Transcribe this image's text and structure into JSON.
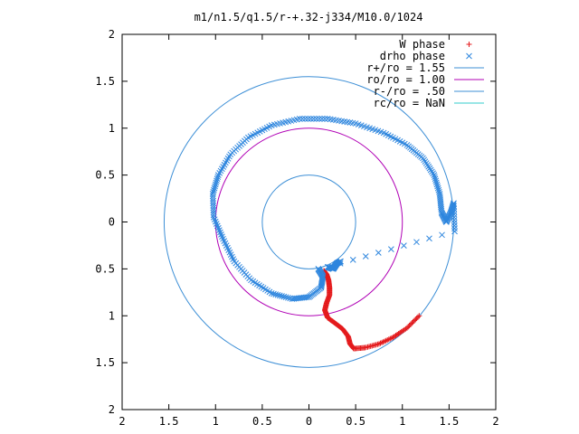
{
  "chart_data": {
    "type": "scatter",
    "title": "m1/n1.5/q1.5/r-+.32-j334/M10.0/1024",
    "xlabel": "",
    "ylabel": "",
    "xlim": [
      -2,
      2
    ],
    "ylim": [
      -2,
      2
    ],
    "x_tick_values": [
      -2,
      -1.5,
      -1,
      -0.5,
      0,
      0.5,
      1,
      1.5,
      2
    ],
    "x_tick_labels": [
      "2",
      "1.5",
      "1",
      "0.5",
      "0",
      "0.5",
      "1",
      "1.5",
      "2"
    ],
    "y_tick_values": [
      2,
      1.5,
      1,
      0.5,
      0,
      -0.5,
      -1,
      -1.5,
      -2
    ],
    "y_tick_labels": [
      "2",
      "1.5",
      "1",
      "0.5",
      "0",
      "0.5",
      "1",
      "1.5",
      "2"
    ],
    "grid": false,
    "legend_position": "top-right",
    "circles": [
      {
        "name": "r+/ro = 1.55",
        "radius": 1.55,
        "color": "#3d8fd6"
      },
      {
        "name": "ro/ro = 1.00",
        "radius": 1.0,
        "color": "#b000b5"
      },
      {
        "name": "r-/ro = .50",
        "radius": 0.5,
        "color": "#3d8fd6"
      },
      {
        "name": "rc/ro = NaN",
        "radius": null,
        "color": "#33cccc"
      }
    ],
    "series": [
      {
        "name": "W phase",
        "marker": "+",
        "color": "#e41a1c",
        "points": [
          [
            0.16,
            -0.52
          ],
          [
            0.19,
            -0.56
          ],
          [
            0.21,
            -0.62
          ],
          [
            0.22,
            -0.7
          ],
          [
            0.22,
            -0.78
          ],
          [
            0.19,
            -0.86
          ],
          [
            0.17,
            -0.94
          ],
          [
            0.2,
            -1.02
          ],
          [
            0.28,
            -1.08
          ],
          [
            0.36,
            -1.14
          ],
          [
            0.42,
            -1.22
          ],
          [
            0.44,
            -1.3
          ],
          [
            0.48,
            -1.35
          ],
          [
            0.6,
            -1.34
          ],
          [
            0.75,
            -1.3
          ],
          [
            0.9,
            -1.23
          ],
          [
            1.05,
            -1.13
          ],
          [
            1.18,
            -1.0
          ]
        ]
      },
      {
        "name": "drho phase",
        "marker": "x",
        "color": "#2e86de",
        "points": [
          [
            0.1,
            -0.5
          ],
          [
            0.15,
            -0.58
          ],
          [
            0.13,
            -0.7
          ],
          [
            0.0,
            -0.8
          ],
          [
            -0.18,
            -0.82
          ],
          [
            -0.4,
            -0.76
          ],
          [
            -0.62,
            -0.62
          ],
          [
            -0.8,
            -0.42
          ],
          [
            -0.92,
            -0.18
          ],
          [
            -1.02,
            0.05
          ],
          [
            -1.03,
            0.3
          ],
          [
            -0.97,
            0.5
          ],
          [
            -0.84,
            0.72
          ],
          [
            -0.65,
            0.9
          ],
          [
            -0.4,
            1.03
          ],
          [
            -0.1,
            1.1
          ],
          [
            0.2,
            1.1
          ],
          [
            0.5,
            1.05
          ],
          [
            0.8,
            0.95
          ],
          [
            1.05,
            0.82
          ],
          [
            1.22,
            0.68
          ],
          [
            1.34,
            0.5
          ],
          [
            1.4,
            0.3
          ],
          [
            1.42,
            0.1
          ],
          [
            1.47,
            0.0
          ],
          [
            1.52,
            0.1
          ],
          [
            1.55,
            0.2
          ],
          [
            1.56,
            -0.1
          ],
          [
            0.2,
            -0.48
          ],
          [
            0.26,
            -0.5
          ],
          [
            0.3,
            -0.44
          ],
          [
            0.34,
            -0.42
          ]
        ]
      }
    ]
  }
}
